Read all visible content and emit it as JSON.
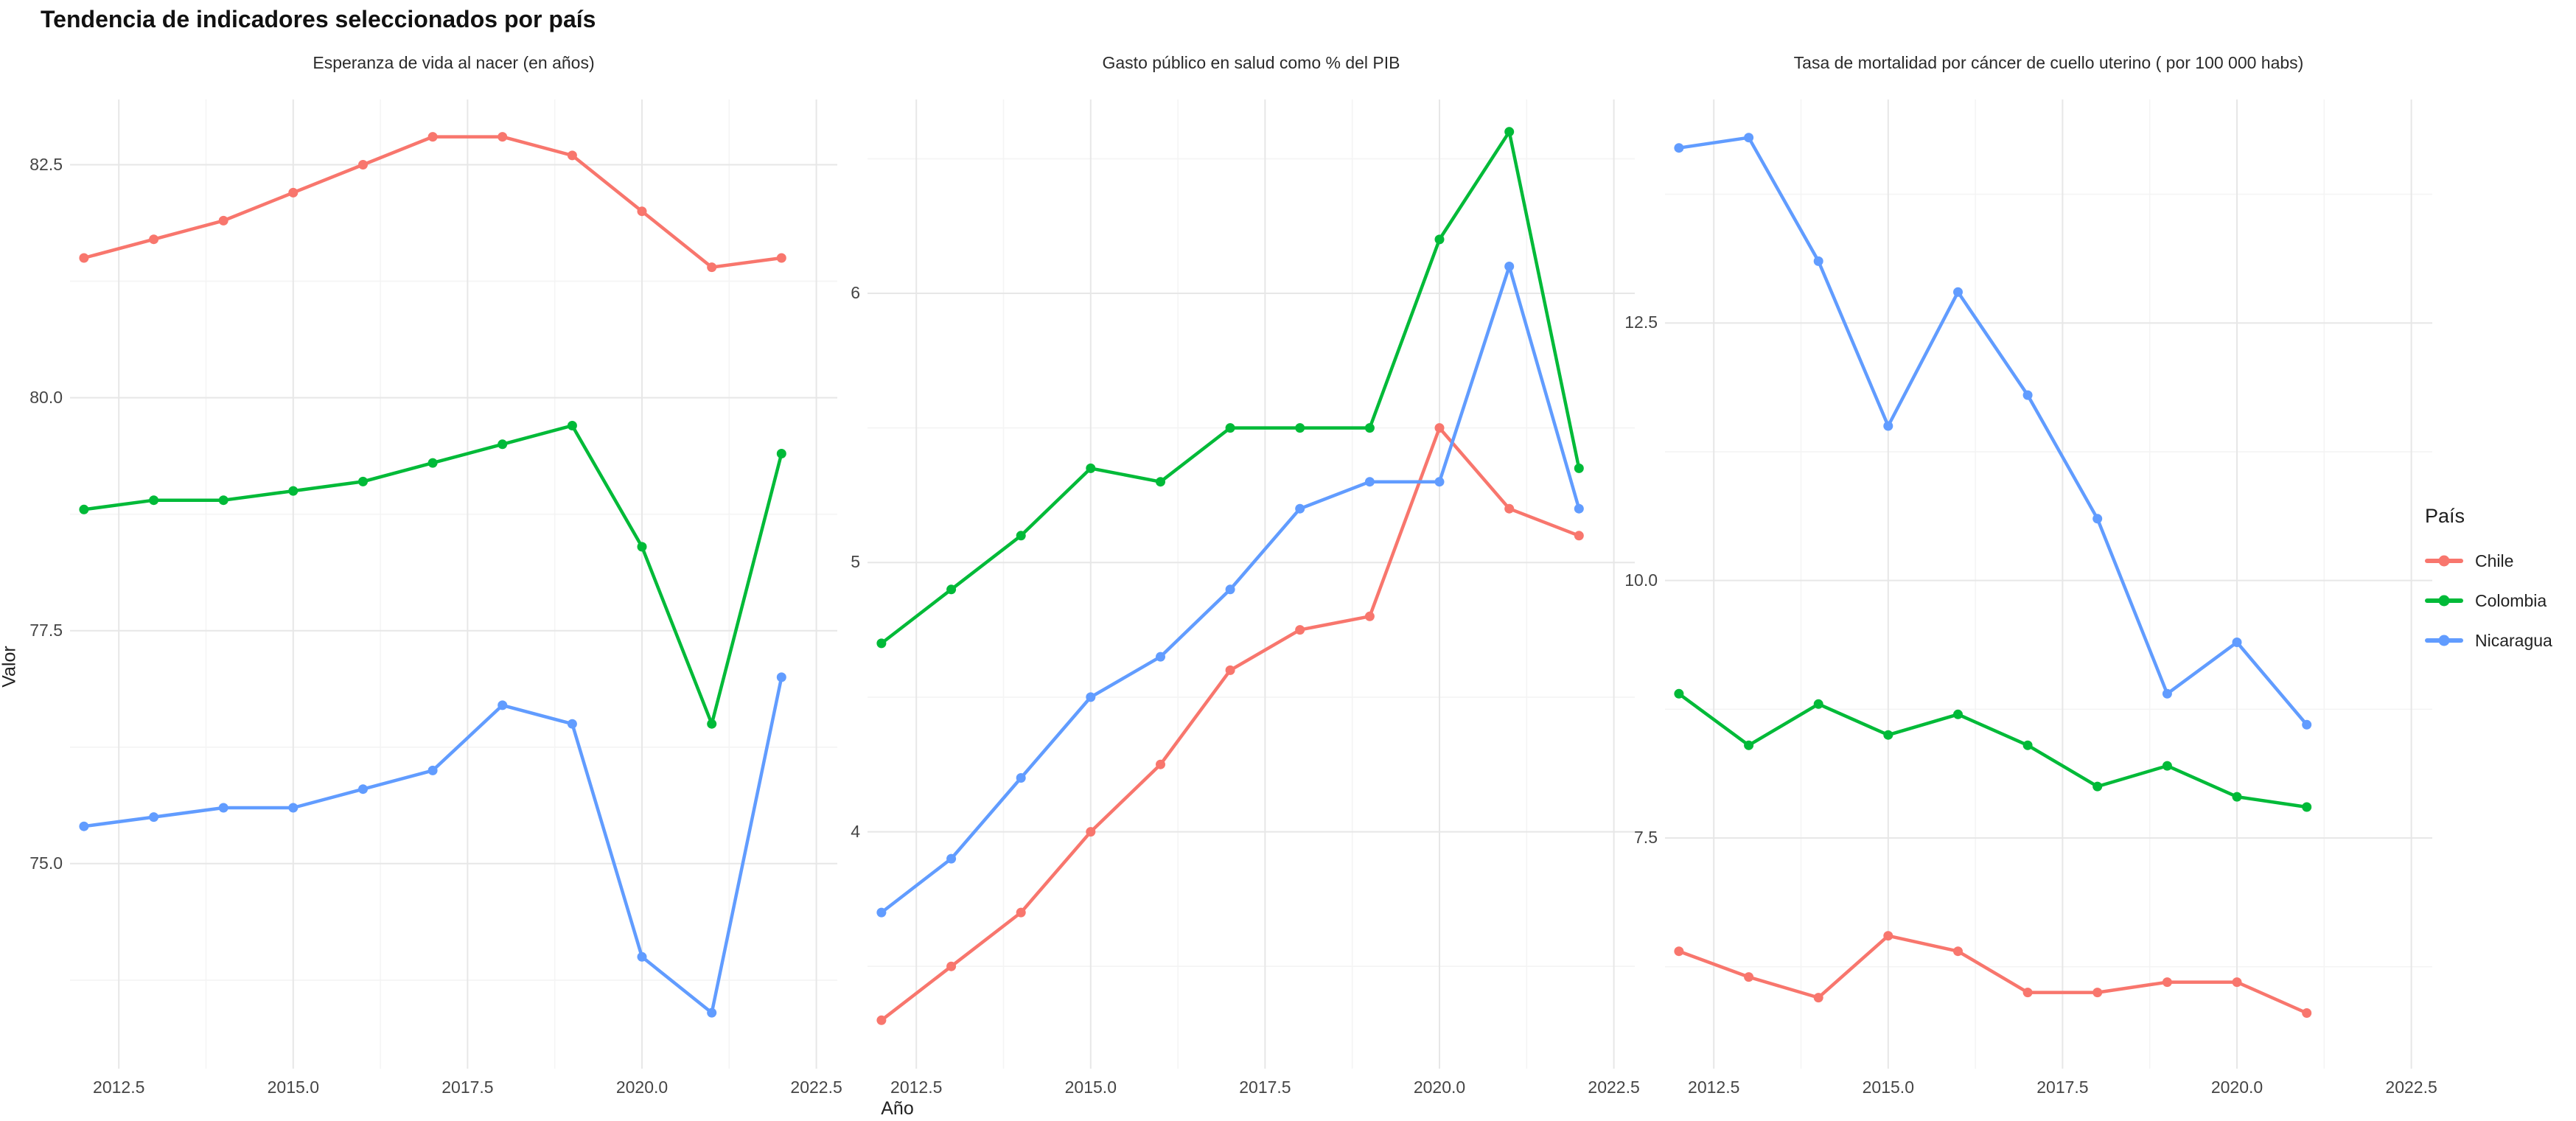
{
  "page": {
    "background": "#ffffff"
  },
  "chart_data": {
    "type": "line",
    "title": "Tendencia de indicadores seleccionados por país",
    "xlabel": "Año",
    "ylabel": "Valor",
    "grid": "major+minor, light gray on white, no panel border",
    "legend": {
      "title": "País",
      "position": "right",
      "entries": [
        {
          "label": "Chile",
          "color": "#f8766d"
        },
        {
          "label": "Colombia",
          "color": "#00ba38"
        },
        {
          "label": "Nicaragua",
          "color": "#619cff"
        }
      ]
    },
    "x_axis": {
      "tick_labels": [
        "2012.5",
        "2015.0",
        "2017.5",
        "2020.0",
        "2022.5"
      ],
      "tick_values": [
        2012.5,
        2015.0,
        2017.5,
        2020.0,
        2022.5
      ],
      "minor_tick_values": [
        2013.75,
        2016.25,
        2018.75,
        2021.25
      ],
      "xlim": [
        2011.8,
        2022.8
      ]
    },
    "panels": [
      {
        "title": "Esperanza de vida al nacer (en años)",
        "y_tick_labels": [
          "82.5",
          "80.0",
          "77.5",
          "75.0"
        ],
        "y_tick_values": [
          82.5,
          80.0,
          77.5,
          75.0
        ],
        "ylim": [
          72.8,
          83.2
        ],
        "years": [
          2012,
          2013,
          2014,
          2015,
          2016,
          2017,
          2018,
          2019,
          2020,
          2021,
          2022
        ],
        "series": [
          {
            "name": "Chile",
            "values": [
              81.5,
              81.7,
              81.9,
              82.2,
              82.5,
              82.8,
              82.8,
              82.6,
              82.0,
              81.4,
              81.5
            ]
          },
          {
            "name": "Colombia",
            "values": [
              78.8,
              78.9,
              78.9,
              79.0,
              79.1,
              79.3,
              79.5,
              79.7,
              78.4,
              76.5,
              79.4
            ]
          },
          {
            "name": "Nicaragua",
            "values": [
              75.4,
              75.5,
              75.6,
              75.6,
              75.8,
              76.0,
              76.7,
              76.5,
              74.0,
              73.4,
              77.0
            ]
          }
        ]
      },
      {
        "title": "Gasto público en salud como % del PIB",
        "y_tick_labels": [
          "6",
          "5",
          "4"
        ],
        "y_tick_values": [
          6,
          5,
          4
        ],
        "ylim": [
          3.12,
          6.72
        ],
        "years": [
          2012,
          2013,
          2014,
          2015,
          2016,
          2017,
          2018,
          2019,
          2020,
          2021,
          2022
        ],
        "series": [
          {
            "name": "Chile",
            "values": [
              3.3,
              3.5,
              3.7,
              4.0,
              4.25,
              4.6,
              4.75,
              4.8,
              5.5,
              5.2,
              5.1
            ]
          },
          {
            "name": "Colombia",
            "values": [
              4.7,
              4.9,
              5.1,
              5.35,
              5.3,
              5.5,
              5.5,
              5.5,
              6.2,
              6.6,
              5.35
            ]
          },
          {
            "name": "Nicaragua",
            "values": [
              3.7,
              3.9,
              4.2,
              4.5,
              4.65,
              4.9,
              5.2,
              5.3,
              5.3,
              6.1,
              5.2
            ]
          }
        ]
      },
      {
        "title": "Tasa de mortalidad por cáncer de cuello uterino ( por 100 000 habs)",
        "y_tick_labels": [
          "12.5",
          "10.0",
          "7.5"
        ],
        "y_tick_values": [
          12.5,
          10.0,
          7.5
        ],
        "ylim": [
          5.26,
          14.67
        ],
        "years": [
          2012,
          2013,
          2014,
          2015,
          2016,
          2017,
          2018,
          2019,
          2020,
          2021
        ],
        "series": [
          {
            "name": "Chile",
            "values": [
              6.4,
              6.15,
              5.95,
              6.55,
              6.4,
              6.0,
              6.0,
              6.1,
              6.1,
              5.8
            ]
          },
          {
            "name": "Colombia",
            "values": [
              8.9,
              8.4,
              8.8,
              8.5,
              8.7,
              8.4,
              8.0,
              8.2,
              7.9,
              7.8
            ]
          },
          {
            "name": "Nicaragua",
            "values": [
              14.2,
              14.3,
              13.1,
              11.5,
              12.8,
              11.8,
              10.6,
              8.9,
              9.4,
              8.6
            ]
          }
        ]
      }
    ]
  }
}
